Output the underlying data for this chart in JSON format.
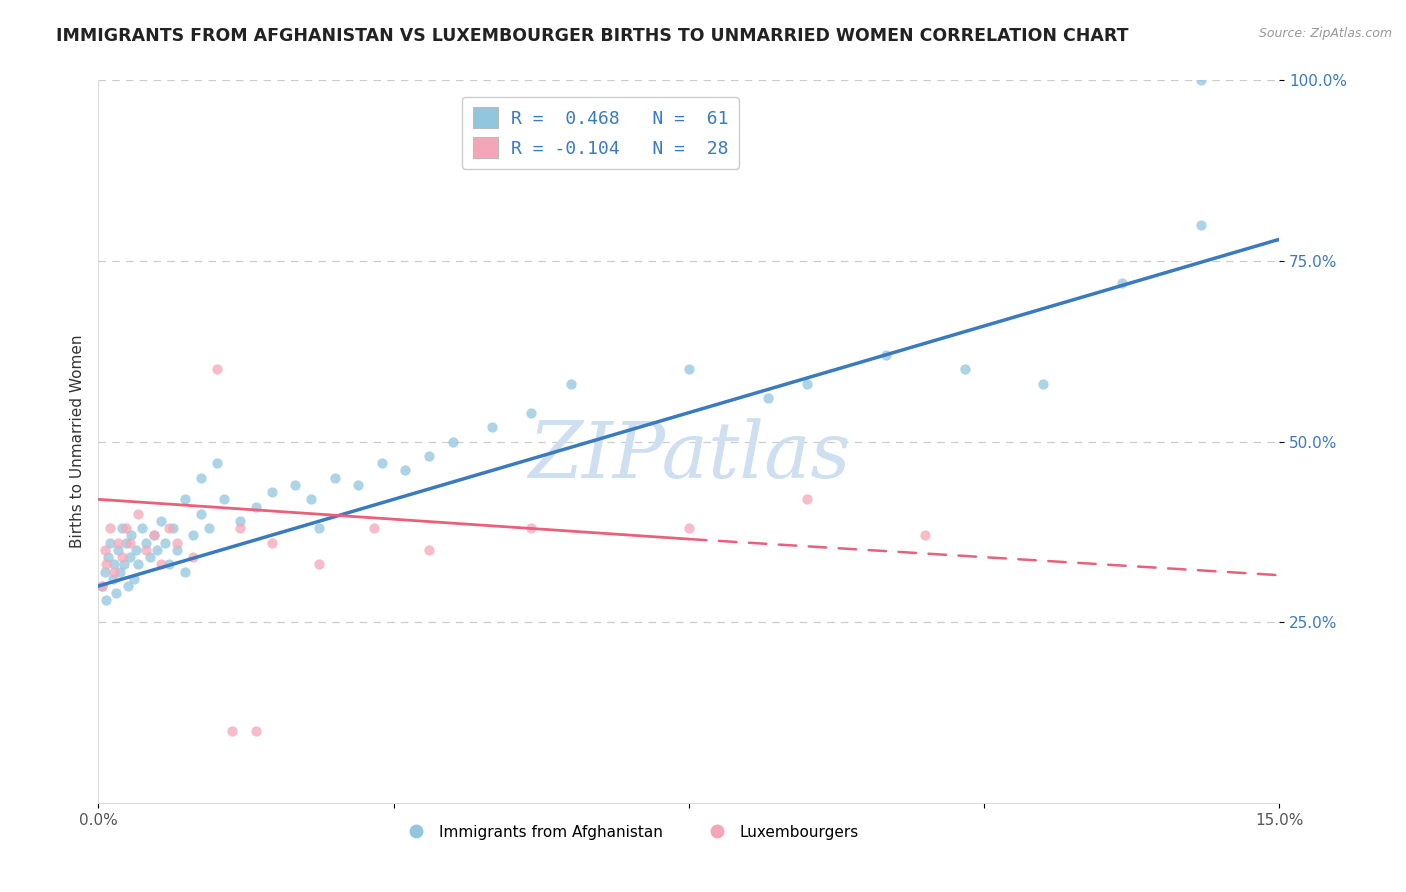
{
  "title": "IMMIGRANTS FROM AFGHANISTAN VS LUXEMBOURGER BIRTHS TO UNMARRIED WOMEN CORRELATION CHART",
  "source_text": "Source: ZipAtlas.com",
  "ylabel": "Births to Unmarried Women",
  "xlim": [
    0.0,
    15.0
  ],
  "ylim": [
    0.0,
    100.0
  ],
  "blue_color": "#92c5de",
  "pink_color": "#f4a6b8",
  "blue_line_color": "#3a7abf",
  "pink_line_color": "#e8607a",
  "watermark": "ZIPatlas",
  "watermark_color": "#cddff0",
  "blue_R": 0.468,
  "blue_N": 61,
  "pink_R": -0.104,
  "pink_N": 28,
  "title_fontsize": 12.5,
  "axis_label_fontsize": 11,
  "tick_fontsize": 11,
  "blue_line_x0": 0.0,
  "blue_line_y0": 30.0,
  "blue_line_x1": 15.0,
  "blue_line_y1": 78.0,
  "pink_solid_x0": 0.0,
  "pink_solid_y0": 42.0,
  "pink_solid_x1": 7.5,
  "pink_solid_y1": 36.5,
  "pink_dash_x0": 7.5,
  "pink_dash_y0": 36.5,
  "pink_dash_x1": 15.0,
  "pink_dash_y1": 31.5,
  "blue_pts_x": [
    0.05,
    0.08,
    0.1,
    0.12,
    0.15,
    0.18,
    0.2,
    0.22,
    0.25,
    0.28,
    0.3,
    0.32,
    0.35,
    0.38,
    0.4,
    0.42,
    0.45,
    0.48,
    0.5,
    0.55,
    0.6,
    0.65,
    0.7,
    0.75,
    0.8,
    0.85,
    0.9,
    0.95,
    1.0,
    1.1,
    1.2,
    1.3,
    1.4,
    1.6,
    1.8,
    2.0,
    2.2,
    2.5,
    2.7,
    3.0,
    3.3,
    3.6,
    3.9,
    4.2,
    4.5,
    5.0,
    5.5,
    6.0,
    7.5,
    8.5,
    9.0,
    10.0,
    11.0,
    12.0,
    13.0,
    14.0,
    1.1,
    1.3,
    1.5,
    2.8,
    14.0
  ],
  "blue_pts_y": [
    30,
    32,
    28,
    34,
    36,
    31,
    33,
    29,
    35,
    32,
    38,
    33,
    36,
    30,
    34,
    37,
    31,
    35,
    33,
    38,
    36,
    34,
    37,
    35,
    39,
    36,
    33,
    38,
    35,
    32,
    37,
    40,
    38,
    42,
    39,
    41,
    43,
    44,
    42,
    45,
    44,
    47,
    46,
    48,
    50,
    52,
    54,
    58,
    60,
    56,
    58,
    62,
    60,
    58,
    72,
    80,
    42,
    45,
    47,
    38,
    100
  ],
  "pink_pts_x": [
    0.05,
    0.08,
    0.1,
    0.15,
    0.2,
    0.25,
    0.3,
    0.35,
    0.4,
    0.5,
    0.6,
    0.7,
    0.8,
    0.9,
    1.0,
    1.2,
    1.5,
    1.8,
    2.2,
    2.8,
    3.5,
    4.2,
    5.5,
    7.5,
    9.0,
    10.5,
    2.0,
    1.7
  ],
  "pink_pts_y": [
    30,
    35,
    33,
    38,
    32,
    36,
    34,
    38,
    36,
    40,
    35,
    37,
    33,
    38,
    36,
    34,
    60,
    38,
    36,
    33,
    38,
    35,
    38,
    38,
    42,
    37,
    10,
    10
  ]
}
